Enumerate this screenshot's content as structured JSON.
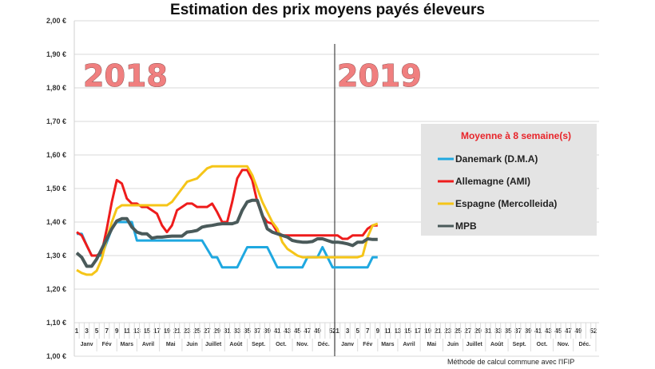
{
  "chart_data": {
    "type": "line",
    "title": "Estimation des prix moyens payés éleveurs",
    "ylim": [
      1.0,
      2.0
    ],
    "y_ticks": [
      "1,00 €",
      "1,10 €",
      "1,20 €",
      "1,30 €",
      "1,40 €",
      "1,50 €",
      "1,60 €",
      "1,70 €",
      "1,80 €",
      "1,90 €",
      "2,00 €"
    ],
    "grid": true,
    "year_labels": [
      "2018",
      "2019"
    ],
    "x_tick_labels_per_year": [
      "1",
      "3",
      "5",
      "7",
      "9",
      "11",
      "13",
      "15",
      "17",
      "19",
      "21",
      "23",
      "25",
      "27",
      "29",
      "31",
      "33",
      "35",
      "37",
      "39",
      "41",
      "43",
      "45",
      "47",
      "49",
      "52"
    ],
    "months": [
      {
        "label": "Janv",
        "from": 1,
        "to": 5
      },
      {
        "label": "Fév",
        "from": 5,
        "to": 9
      },
      {
        "label": "Mars",
        "from": 9,
        "to": 13
      },
      {
        "label": "Avril",
        "from": 13,
        "to": 17.5
      },
      {
        "label": "Mai",
        "from": 17.5,
        "to": 22
      },
      {
        "label": "Juin",
        "from": 22,
        "to": 26
      },
      {
        "label": "Juillet",
        "from": 26,
        "to": 30.5
      },
      {
        "label": "Août",
        "from": 30.5,
        "to": 35
      },
      {
        "label": "Sept.",
        "from": 35,
        "to": 39.5
      },
      {
        "label": "Oct.",
        "from": 39.5,
        "to": 44
      },
      {
        "label": "Nov.",
        "from": 44,
        "to": 48
      },
      {
        "label": "Déc.",
        "from": 48,
        "to": 52.5
      }
    ],
    "x": [
      1,
      2,
      3,
      4,
      5,
      6,
      7,
      8,
      9,
      10,
      11,
      12,
      13,
      14,
      15,
      16,
      17,
      18,
      19,
      20,
      21,
      22,
      23,
      24,
      25,
      26,
      27,
      28,
      29,
      30,
      31,
      32,
      33,
      34,
      35,
      36,
      37,
      38,
      39,
      40,
      41,
      42,
      43,
      44,
      45,
      46,
      47,
      48,
      49,
      50,
      51,
      52,
      1,
      2,
      3,
      4,
      5,
      6,
      7,
      8,
      9
    ],
    "legend": {
      "title": "Moyenne à  8 semaine(s)",
      "placement": "right"
    },
    "series": [
      {
        "name": "Danemark (D.M.A)",
        "color": "#1fa8e0",
        "values": [
          1.365,
          1.365,
          1.33,
          1.3,
          1.3,
          1.3,
          1.34,
          1.38,
          1.4,
          1.4,
          1.4,
          1.4,
          1.345,
          1.345,
          1.345,
          1.345,
          1.345,
          1.345,
          1.345,
          1.345,
          1.345,
          1.345,
          1.345,
          1.345,
          1.345,
          1.345,
          1.32,
          1.295,
          1.295,
          1.265,
          1.265,
          1.265,
          1.265,
          1.295,
          1.325,
          1.325,
          1.325,
          1.325,
          1.325,
          1.295,
          1.265,
          1.265,
          1.265,
          1.265,
          1.265,
          1.265,
          1.295,
          1.295,
          1.295,
          1.325,
          1.295,
          1.265,
          1.265,
          1.265,
          1.265,
          1.265,
          1.265,
          1.265,
          1.265,
          1.295,
          1.295
        ]
      },
      {
        "name": "Allemagne (AMI)",
        "color": "#ee1c1c",
        "values": [
          1.37,
          1.36,
          1.33,
          1.3,
          1.3,
          1.31,
          1.38,
          1.46,
          1.525,
          1.515,
          1.47,
          1.455,
          1.455,
          1.445,
          1.445,
          1.435,
          1.425,
          1.39,
          1.37,
          1.39,
          1.435,
          1.445,
          1.455,
          1.455,
          1.445,
          1.445,
          1.445,
          1.455,
          1.43,
          1.4,
          1.4,
          1.46,
          1.53,
          1.555,
          1.555,
          1.525,
          1.46,
          1.42,
          1.4,
          1.395,
          1.37,
          1.36,
          1.36,
          1.36,
          1.36,
          1.36,
          1.36,
          1.36,
          1.36,
          1.36,
          1.36,
          1.36,
          1.36,
          1.35,
          1.35,
          1.36,
          1.36,
          1.36,
          1.38,
          1.39,
          1.39
        ]
      },
      {
        "name": "Espagne (Mercolleida)",
        "color": "#f5c518",
        "values": [
          1.257,
          1.248,
          1.243,
          1.243,
          1.255,
          1.29,
          1.35,
          1.4,
          1.44,
          1.45,
          1.45,
          1.45,
          1.45,
          1.45,
          1.45,
          1.45,
          1.45,
          1.45,
          1.45,
          1.46,
          1.48,
          1.5,
          1.52,
          1.525,
          1.53,
          1.545,
          1.56,
          1.566,
          1.566,
          1.566,
          1.566,
          1.566,
          1.566,
          1.566,
          1.566,
          1.54,
          1.5,
          1.46,
          1.43,
          1.4,
          1.38,
          1.34,
          1.32,
          1.31,
          1.3,
          1.295,
          1.295,
          1.295,
          1.295,
          1.295,
          1.295,
          1.295,
          1.295,
          1.295,
          1.295,
          1.295,
          1.295,
          1.3,
          1.355,
          1.39,
          1.395
        ]
      },
      {
        "name": "MPB",
        "color": "#4a5a5a",
        "values": [
          1.308,
          1.295,
          1.268,
          1.268,
          1.29,
          1.32,
          1.35,
          1.38,
          1.403,
          1.41,
          1.41,
          1.385,
          1.37,
          1.365,
          1.365,
          1.352,
          1.355,
          1.355,
          1.357,
          1.358,
          1.358,
          1.358,
          1.37,
          1.372,
          1.375,
          1.385,
          1.388,
          1.39,
          1.393,
          1.395,
          1.395,
          1.395,
          1.4,
          1.435,
          1.46,
          1.465,
          1.465,
          1.42,
          1.38,
          1.37,
          1.365,
          1.36,
          1.355,
          1.345,
          1.342,
          1.34,
          1.34,
          1.342,
          1.35,
          1.35,
          1.345,
          1.34,
          1.34,
          1.338,
          1.335,
          1.33,
          1.34,
          1.34,
          1.35,
          1.348,
          1.348
        ]
      }
    ]
  },
  "footnote": "Méthode de calcul commune avec l'IFIP"
}
